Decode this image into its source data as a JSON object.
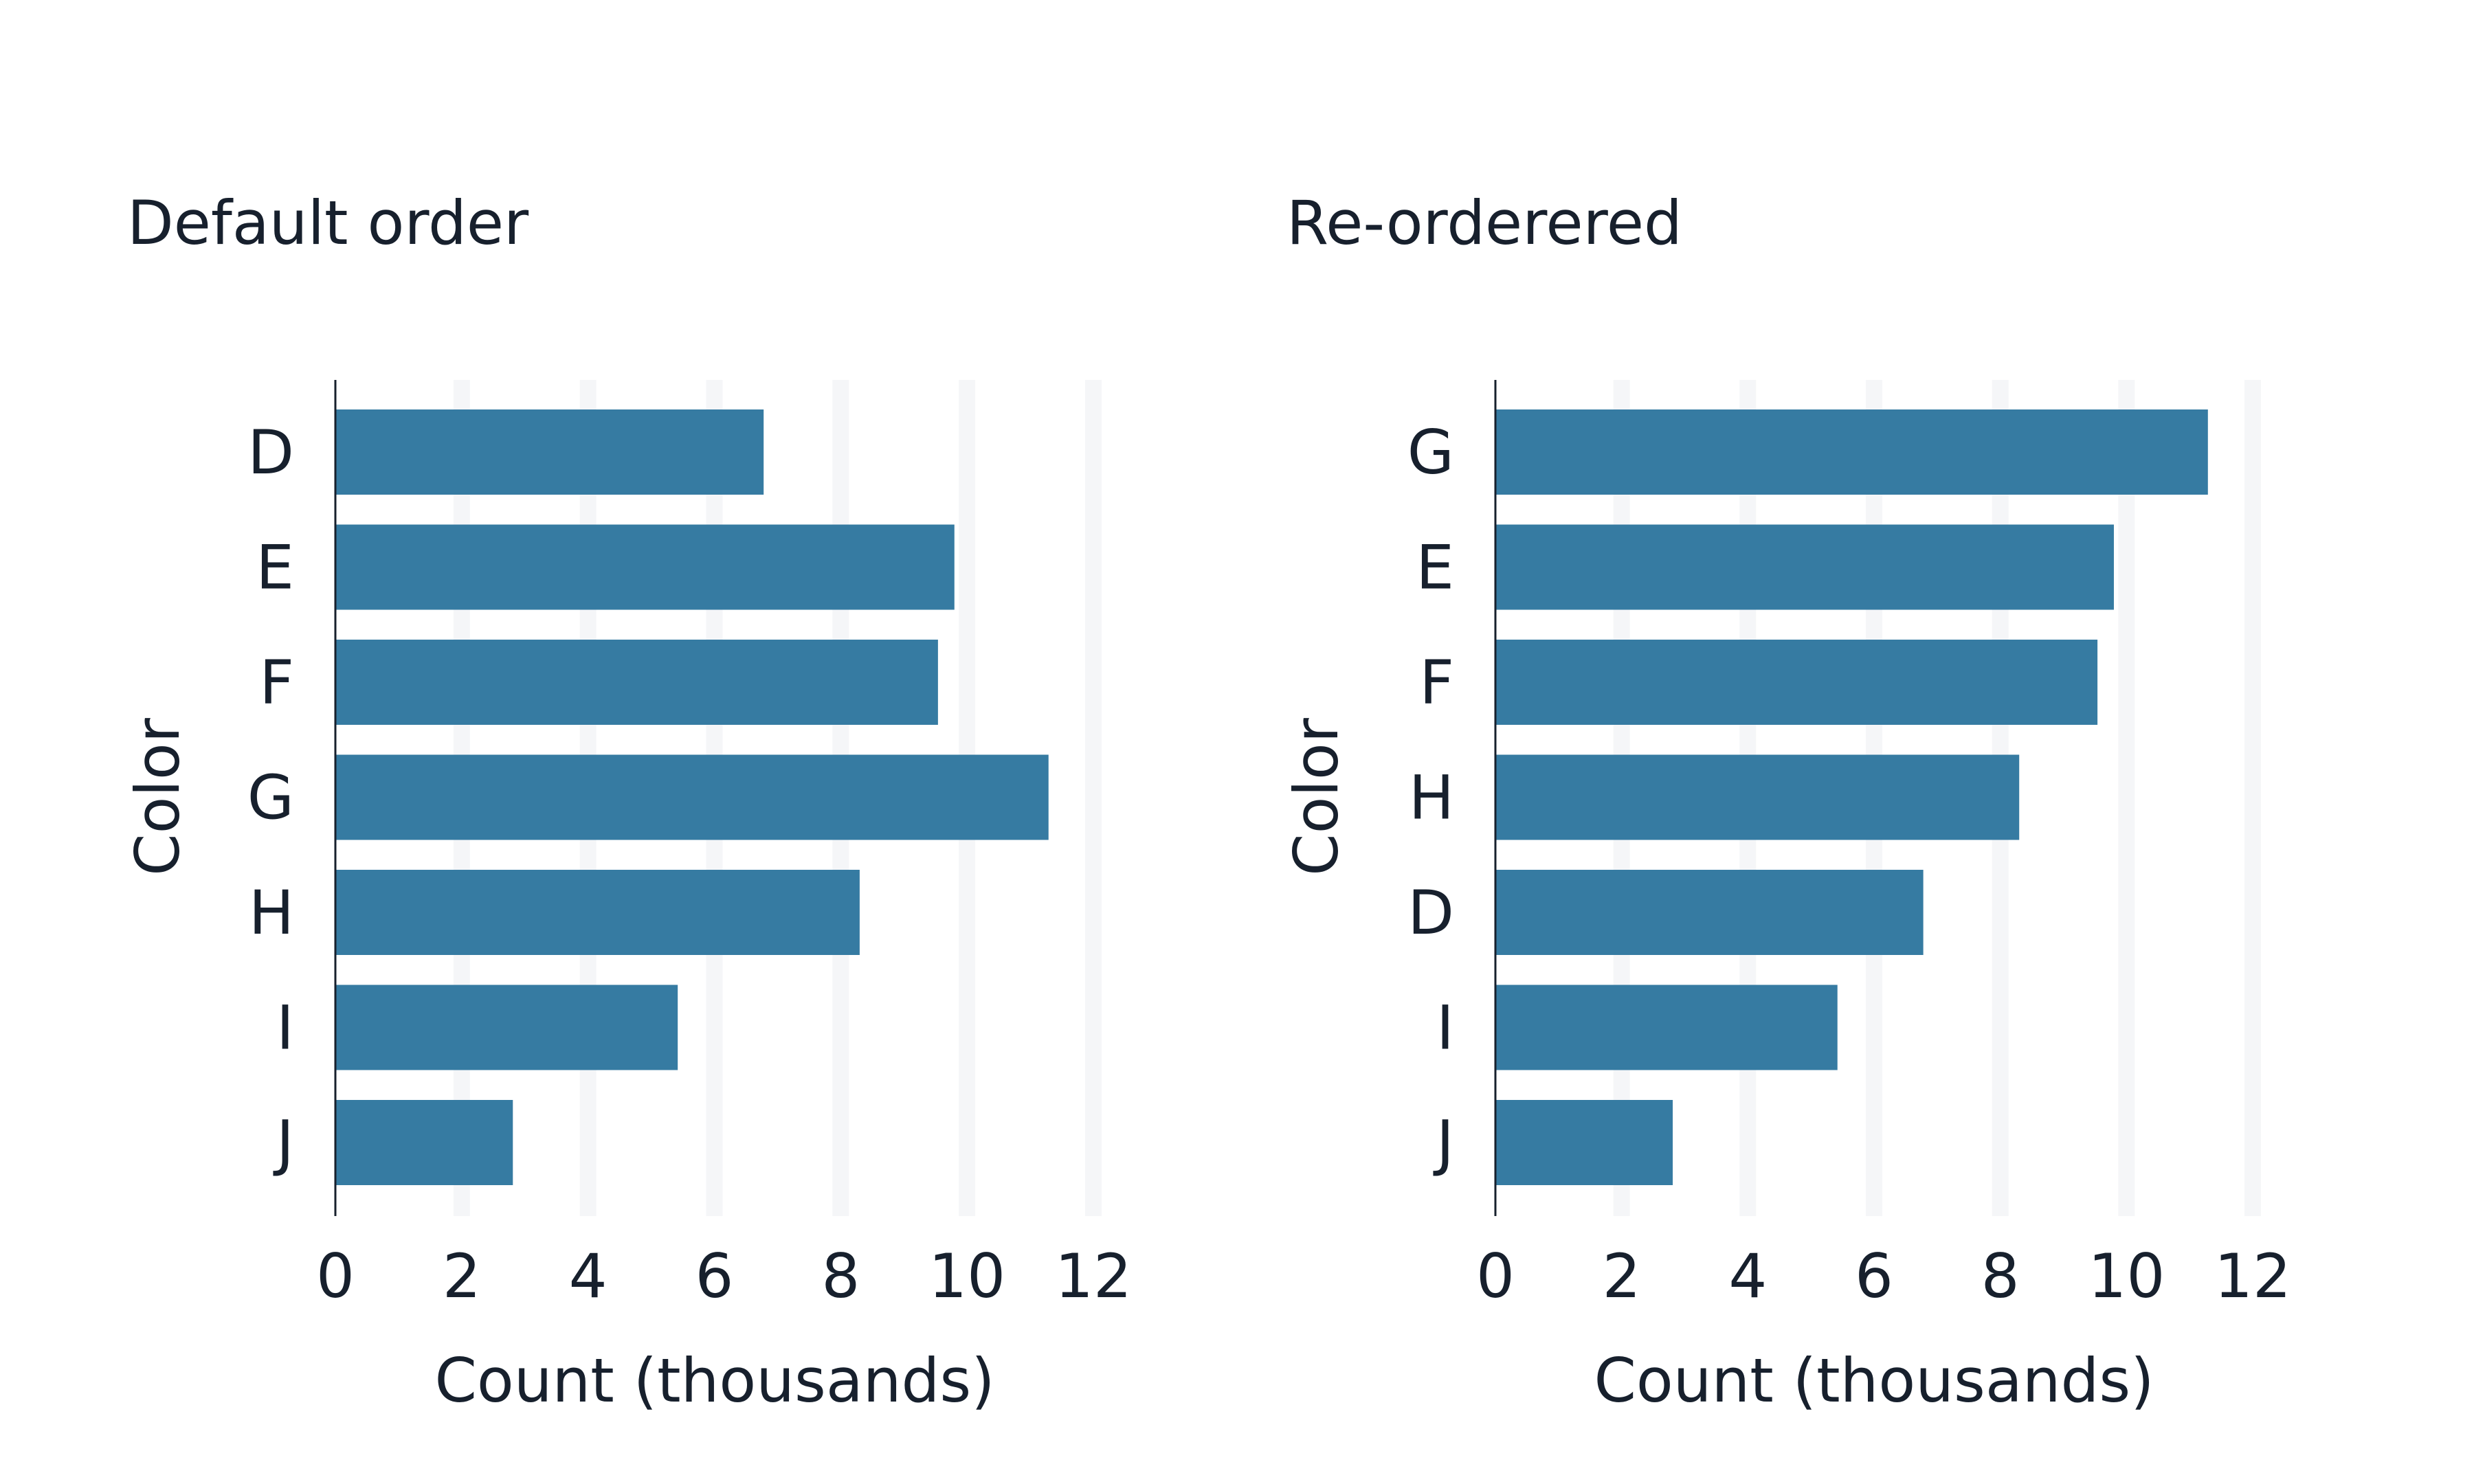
{
  "chart_data": [
    {
      "type": "bar",
      "orientation": "horizontal",
      "title": "Default order",
      "xlabel": "Count (thousands)",
      "ylabel": "Color",
      "categories": [
        "D",
        "E",
        "F",
        "G",
        "H",
        "I",
        "J"
      ],
      "values": [
        6.78,
        9.8,
        9.54,
        11.29,
        8.3,
        5.42,
        2.81
      ],
      "xlim": [
        0,
        12
      ],
      "xticks": [
        "0",
        "2",
        "4",
        "6",
        "8",
        "10",
        "12"
      ],
      "grid": "vertical",
      "bar_color": "#367ba2",
      "grid_color": "#f5f6f8",
      "text_color": "#17202d"
    },
    {
      "type": "bar",
      "orientation": "horizontal",
      "title": "Re-orderered",
      "xlabel": "Count (thousands)",
      "ylabel": "Color",
      "categories": [
        "G",
        "E",
        "F",
        "H",
        "D",
        "I",
        "J"
      ],
      "values": [
        11.29,
        9.8,
        9.54,
        8.3,
        6.78,
        5.42,
        2.81
      ],
      "xlim": [
        0,
        12
      ],
      "xticks": [
        "0",
        "2",
        "4",
        "6",
        "8",
        "10",
        "12"
      ],
      "grid": "vertical",
      "bar_color": "#367ba2",
      "grid_color": "#f5f6f8",
      "text_color": "#17202d"
    }
  ]
}
